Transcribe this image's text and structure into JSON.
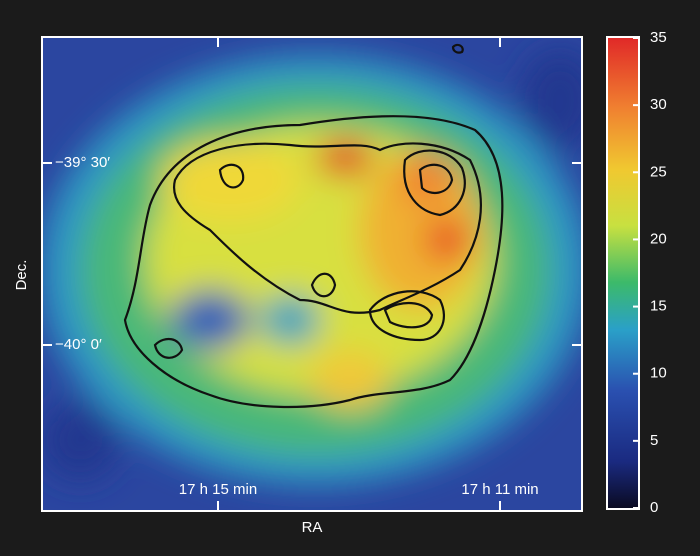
{
  "chart_data": {
    "type": "image-map",
    "xlabel": "RA",
    "ylabel": "Dec.",
    "x_tick_labels": [
      "17 h 15 min",
      "17 h 11 min"
    ],
    "y_tick_labels": [
      "−39° 30′",
      "−40° 0′"
    ],
    "colorbar": {
      "lim": [
        0,
        35
      ],
      "ticks": [
        0,
        5,
        10,
        15,
        20,
        25,
        30,
        35
      ]
    }
  }
}
